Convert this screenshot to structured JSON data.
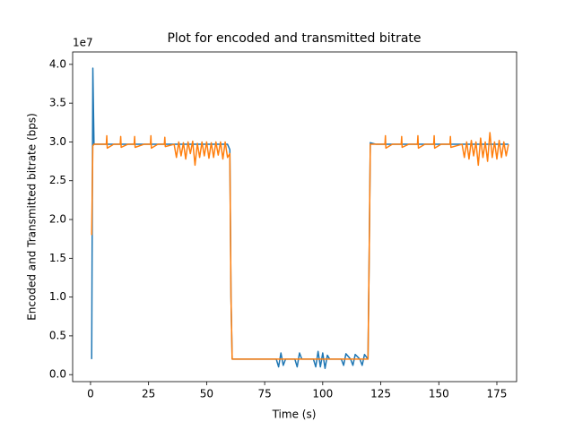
{
  "chart_data": {
    "type": "line",
    "title": "Plot for encoded and transmitted bitrate",
    "x_label": "Time (s)",
    "y_label": "Encoded and Transmitted bitrate (bps)",
    "y_offset_label": "1e7",
    "xlim": [
      -7.7,
      183.5
    ],
    "ylim": [
      -0.09,
      4.16
    ],
    "xticks": [
      0,
      25,
      50,
      75,
      100,
      125,
      150,
      175
    ],
    "yticks": [
      {
        "value": 0,
        "label": "0.0"
      },
      0.5,
      {
        "value": 1,
        "label": "1.0"
      },
      1.5,
      {
        "value": 2,
        "label": "2.0"
      },
      2.5,
      {
        "value": 3,
        "label": "3.0"
      },
      3.5,
      {
        "value": 4,
        "label": "4.0"
      }
    ],
    "x": [
      0.5,
      1,
      1.5,
      5,
      6.8,
      7,
      7.2,
      10,
      12.8,
      13,
      13.2,
      16,
      18.8,
      19,
      19.2,
      23,
      25.8,
      26,
      26.2,
      29,
      31.8,
      32,
      32.2,
      36,
      37,
      38,
      39,
      40,
      41,
      42,
      43,
      44,
      45,
      46,
      47,
      48,
      49,
      50,
      51,
      52,
      53,
      54,
      55,
      56,
      57,
      58,
      59,
      60,
      60.5,
      61,
      70,
      80,
      81,
      82,
      83,
      84,
      88,
      89,
      90,
      91,
      96,
      97,
      98,
      99,
      100,
      101,
      102,
      103,
      108,
      109,
      110,
      112,
      113,
      114,
      116,
      117,
      118,
      119.5,
      120,
      120.5,
      123,
      126.8,
      127,
      127.2,
      130,
      133.8,
      134,
      134.2,
      137,
      140.8,
      141,
      141.2,
      144,
      147.8,
      148,
      148.2,
      151,
      154.8,
      155,
      155.2,
      160,
      161,
      162,
      163,
      164,
      165,
      166,
      167,
      168,
      169,
      170,
      171,
      172,
      173,
      174,
      175,
      176,
      177,
      178,
      179,
      180
    ],
    "series": [
      {
        "color": "#1f77b4",
        "values": [
          0.2,
          3.95,
          2.97,
          2.97,
          2.97,
          2.97,
          2.97,
          2.97,
          2.97,
          2.97,
          2.97,
          2.97,
          2.97,
          2.97,
          2.97,
          2.97,
          2.97,
          2.97,
          2.97,
          2.97,
          2.97,
          2.97,
          2.97,
          2.97,
          2.97,
          2.97,
          2.97,
          2.97,
          2.97,
          2.97,
          2.97,
          2.97,
          2.97,
          2.97,
          2.97,
          2.97,
          2.97,
          2.97,
          2.97,
          2.97,
          2.97,
          2.97,
          2.97,
          2.97,
          2.97,
          2.97,
          2.97,
          2.9,
          1.0,
          0.2,
          0.2,
          0.2,
          0.1,
          0.28,
          0.12,
          0.2,
          0.2,
          0.1,
          0.28,
          0.2,
          0.2,
          0.1,
          0.3,
          0.1,
          0.28,
          0.08,
          0.25,
          0.2,
          0.2,
          0.12,
          0.27,
          0.2,
          0.12,
          0.26,
          0.2,
          0.12,
          0.26,
          0.2,
          1.5,
          2.99,
          2.97,
          2.97,
          2.97,
          2.97,
          2.97,
          2.97,
          2.97,
          2.97,
          2.97,
          2.97,
          2.97,
          2.97,
          2.97,
          2.97,
          2.97,
          2.97,
          2.97,
          2.97,
          2.97,
          2.97,
          2.97,
          2.97,
          2.97,
          2.97,
          2.97,
          2.97,
          2.97,
          2.97,
          2.97,
          2.97,
          2.97,
          2.97,
          2.97,
          2.97,
          2.97,
          2.97,
          2.97,
          2.97,
          2.97,
          2.97,
          2.97
        ]
      },
      {
        "color": "#ff7f0e",
        "values": [
          1.8,
          2.95,
          2.97,
          2.97,
          2.97,
          3.08,
          2.92,
          2.97,
          2.97,
          3.07,
          2.93,
          2.97,
          2.97,
          3.07,
          2.93,
          2.97,
          2.97,
          3.08,
          2.92,
          2.97,
          2.97,
          3.06,
          2.94,
          2.97,
          2.8,
          3.0,
          2.82,
          2.99,
          2.78,
          3.0,
          2.85,
          3.01,
          2.7,
          2.98,
          2.8,
          3.0,
          2.82,
          3.0,
          2.79,
          2.99,
          2.8,
          3.0,
          2.83,
          3.0,
          2.78,
          3.0,
          2.8,
          2.85,
          1.0,
          0.2,
          0.2,
          0.2,
          0.2,
          0.2,
          0.2,
          0.2,
          0.2,
          0.2,
          0.2,
          0.2,
          0.2,
          0.2,
          0.2,
          0.2,
          0.2,
          0.2,
          0.2,
          0.2,
          0.2,
          0.2,
          0.2,
          0.2,
          0.2,
          0.2,
          0.2,
          0.2,
          0.2,
          0.2,
          1.5,
          2.97,
          2.97,
          2.97,
          3.08,
          2.92,
          2.97,
          2.97,
          3.07,
          2.93,
          2.97,
          2.97,
          3.08,
          2.92,
          2.97,
          2.97,
          3.08,
          2.92,
          2.97,
          2.97,
          3.07,
          2.93,
          2.97,
          2.8,
          3.0,
          2.78,
          3.02,
          2.82,
          3.0,
          2.7,
          3.05,
          2.8,
          3.0,
          2.75,
          3.12,
          2.8,
          3.0,
          2.78,
          3.02,
          2.8,
          3.0,
          2.82,
          2.97
        ]
      }
    ]
  }
}
